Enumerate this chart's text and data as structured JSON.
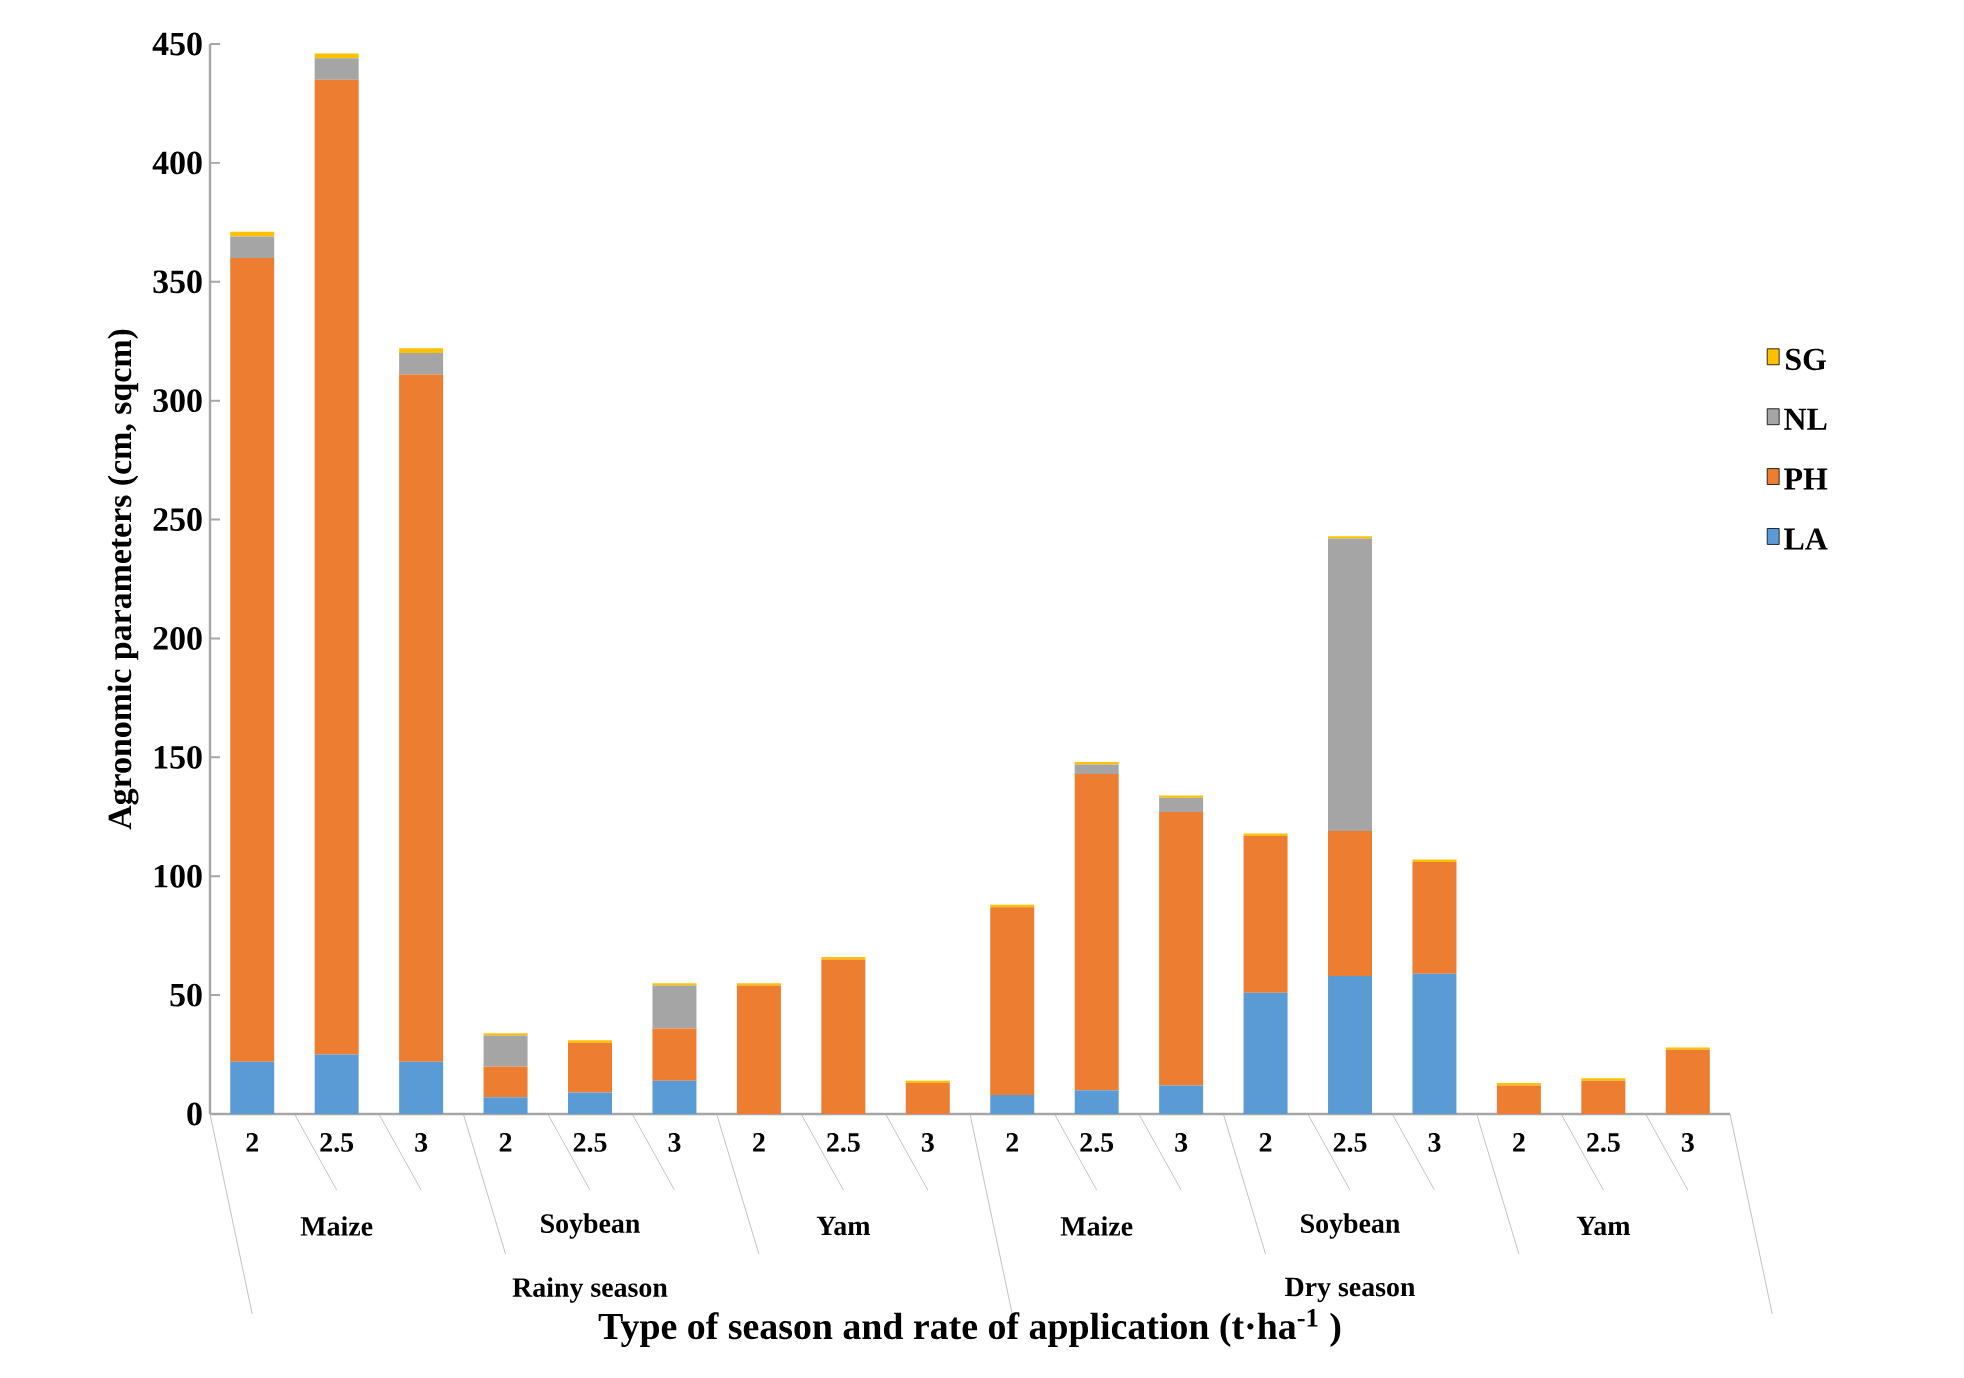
{
  "chart_data": {
    "type": "bar",
    "stacked": true,
    "xlabel": "Type of season and rate of application (t·ha$^{-1}$ )",
    "ylabel": "Agronomic parameters (cm, sqcm)",
    "categories": [
      "2",
      "2.5",
      "3",
      "2",
      "2.5",
      "3",
      "2",
      "2.5",
      "3",
      "2",
      "2.5",
      "3",
      "2",
      "2.5",
      "3",
      "2",
      "2.5",
      "3"
    ],
    "annotations": [
      "Maize",
      "Soybean",
      "Yam",
      "Maize",
      "Soybean",
      "Yam",
      "Rainy season",
      "Dry season"
    ],
    "series": [
      {
        "name": "LA",
        "color": "#5b9bd5",
        "values": [
          22,
          25,
          22,
          7,
          9,
          14,
          0,
          0,
          0,
          8,
          10,
          12,
          51,
          58,
          59,
          0,
          0,
          0
        ]
      },
      {
        "name": "PH",
        "color": "#ed7d31",
        "values": [
          338,
          410,
          289,
          13,
          21,
          22,
          54,
          65,
          13,
          79,
          133,
          115,
          66,
          61,
          47,
          12,
          14,
          27
        ]
      },
      {
        "name": "NL",
        "color": "#a5a5a5",
        "values": [
          9,
          9,
          9,
          13,
          0,
          18,
          0,
          0,
          0,
          0,
          4,
          6,
          0,
          123,
          0,
          0,
          0,
          0
        ]
      },
      {
        "name": "SG",
        "color": "#ffc000",
        "values": [
          2,
          2,
          2,
          1,
          1,
          1,
          1,
          1,
          1,
          1,
          1,
          1,
          1,
          1,
          1,
          1,
          1,
          1
        ]
      }
    ],
    "ylim": [
      0,
      450
    ],
    "yticks": [
      0,
      50,
      100,
      150,
      200,
      250,
      300,
      350,
      400,
      450
    ],
    "legend": "right"
  }
}
